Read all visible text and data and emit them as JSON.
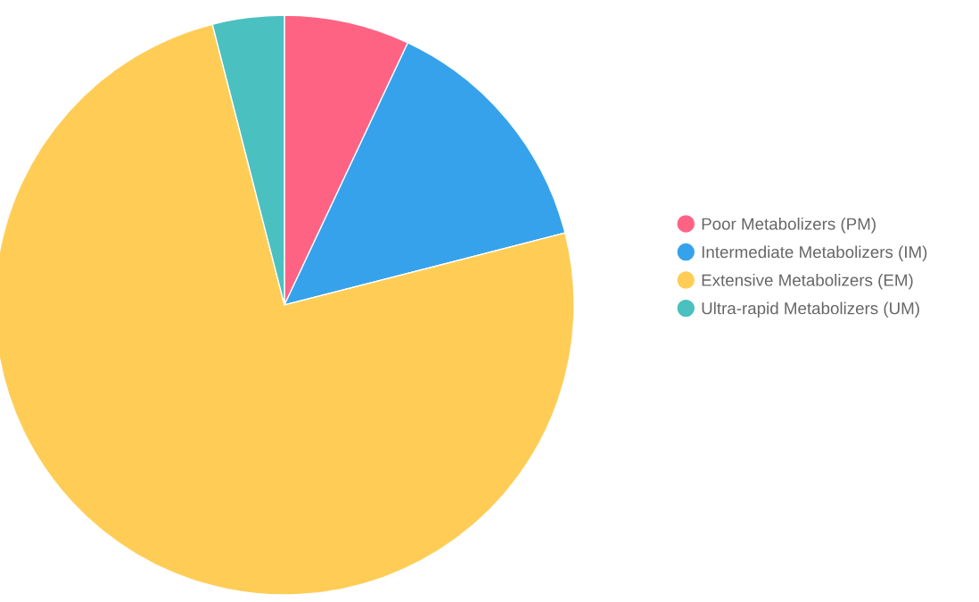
{
  "chart_data": {
    "type": "pie",
    "categories": [
      "Poor Metabolizers (PM)",
      "Intermediate Metabolizers (IM)",
      "Extensive Metabolizers (EM)",
      "Ultra-rapid Metabolizers (UM)"
    ],
    "values": [
      7,
      14,
      75,
      4
    ],
    "colors": [
      "#ff6384",
      "#36a2eb",
      "#ffcd56",
      "#4bc0c0"
    ],
    "legend": "right"
  }
}
